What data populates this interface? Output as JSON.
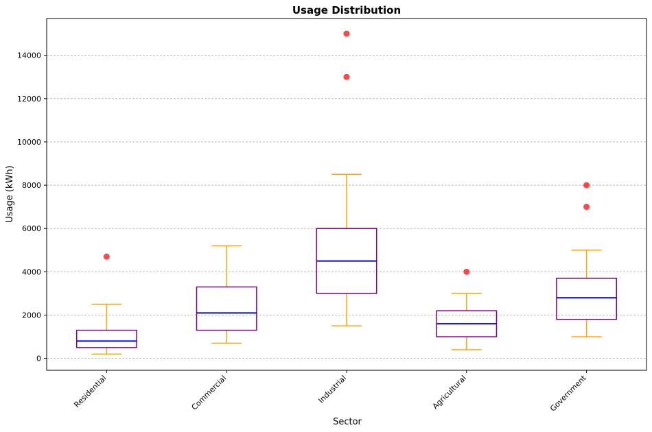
{
  "chart_data": {
    "type": "box",
    "title": "Usage Distribution",
    "xlabel": "Sector",
    "ylabel": "Usage (kWh)",
    "ylim": [
      -550,
      15700
    ],
    "yticks": [
      0,
      2000,
      4000,
      6000,
      8000,
      10000,
      12000,
      14000
    ],
    "ytick_labels": [
      "0",
      "2000",
      "4000",
      "6000",
      "8000",
      "10000",
      "12000",
      "14000"
    ],
    "grid": "y-dashed",
    "categories": [
      "Residential",
      "Commercial",
      "Industrial",
      "Agricultural",
      "Government"
    ],
    "boxes": [
      {
        "whisker_low": 200,
        "q1": 500,
        "median": 800,
        "q3": 1300,
        "whisker_high": 2500,
        "outliers": [
          4700
        ]
      },
      {
        "whisker_low": 700,
        "q1": 1300,
        "median": 2100,
        "q3": 3300,
        "whisker_high": 5200,
        "outliers": []
      },
      {
        "whisker_low": 1500,
        "q1": 3000,
        "median": 4500,
        "q3": 6000,
        "whisker_high": 8500,
        "outliers": [
          13000,
          15000
        ]
      },
      {
        "whisker_low": 400,
        "q1": 1000,
        "median": 1600,
        "q3": 2200,
        "whisker_high": 3000,
        "outliers": [
          4000
        ]
      },
      {
        "whisker_low": 1000,
        "q1": 1800,
        "median": 2800,
        "q3": 3700,
        "whisker_high": 5000,
        "outliers": [
          7000,
          8000
        ]
      }
    ],
    "colors": {
      "box": "#800080",
      "median": "#0000ff",
      "whisker": "#ffa500",
      "outlier": "#ff0000",
      "grid": "#b0b0b0"
    }
  }
}
